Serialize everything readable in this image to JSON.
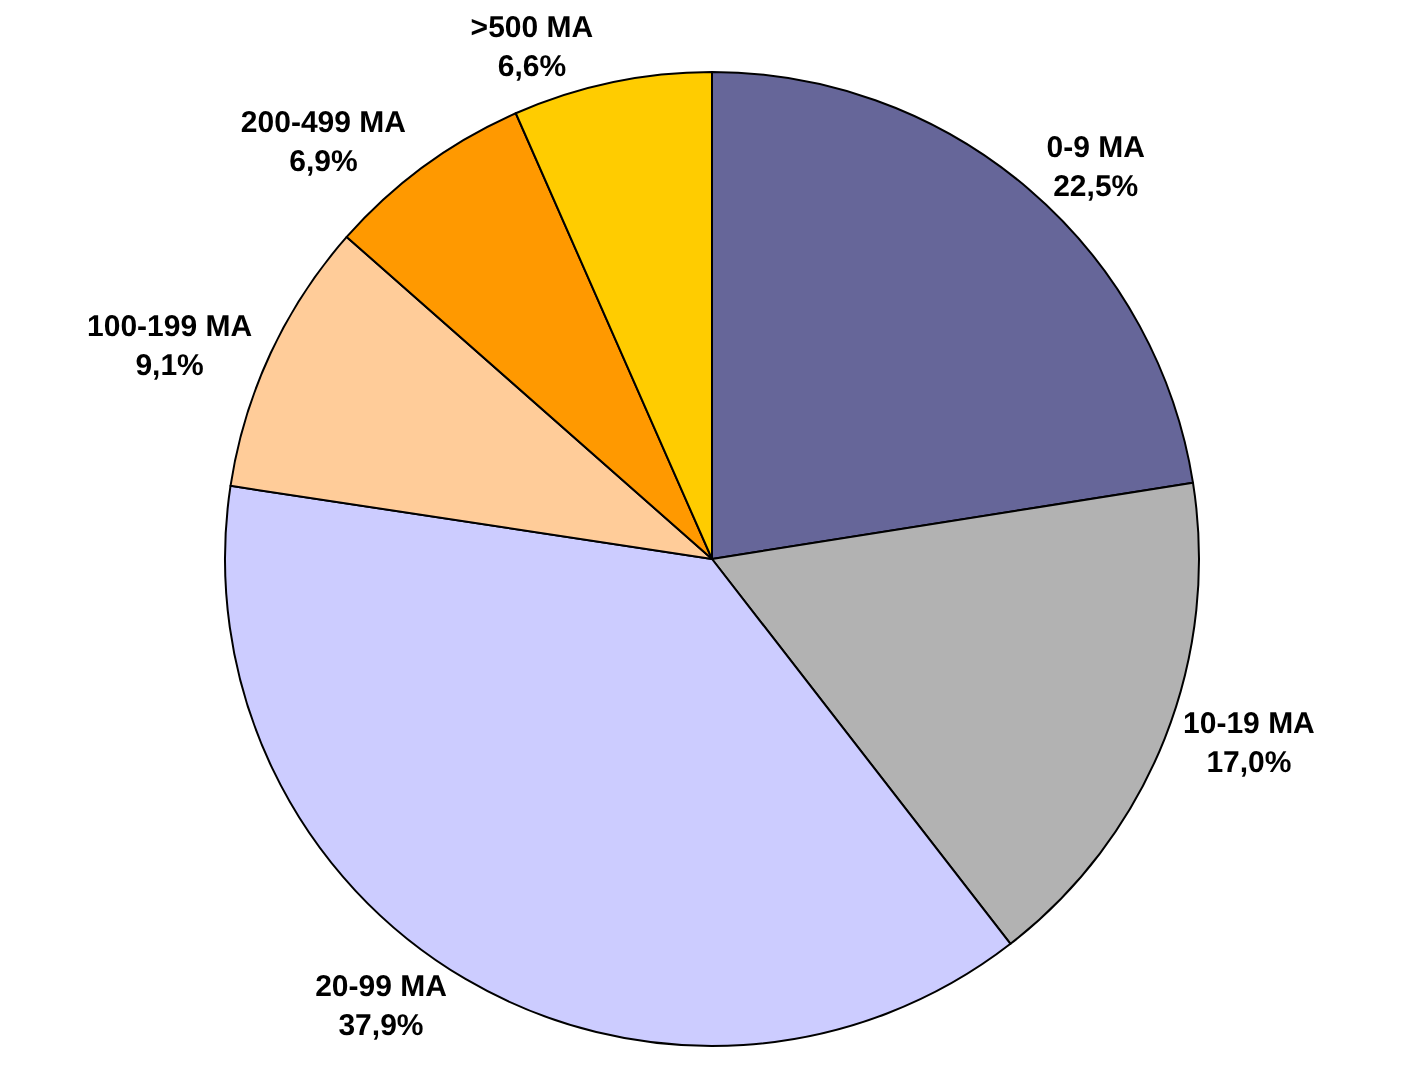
{
  "chart_data": {
    "type": "pie",
    "categories": [
      "0-9 MA",
      "10-19 MA",
      "20-99 MA",
      "100-199 MA",
      "200-499 MA",
      ">500 MA"
    ],
    "values": [
      22.5,
      17.0,
      37.9,
      9.1,
      6.9,
      6.6
    ],
    "value_labels": [
      "22,5%",
      "17,0%",
      "37,9%",
      "9,1%",
      "6,9%",
      "6,6%"
    ],
    "colors": [
      "#666699",
      "#b2b2b2",
      "#ccccff",
      "#ffcc99",
      "#ff9900",
      "#ffcc00"
    ],
    "legend": false
  }
}
